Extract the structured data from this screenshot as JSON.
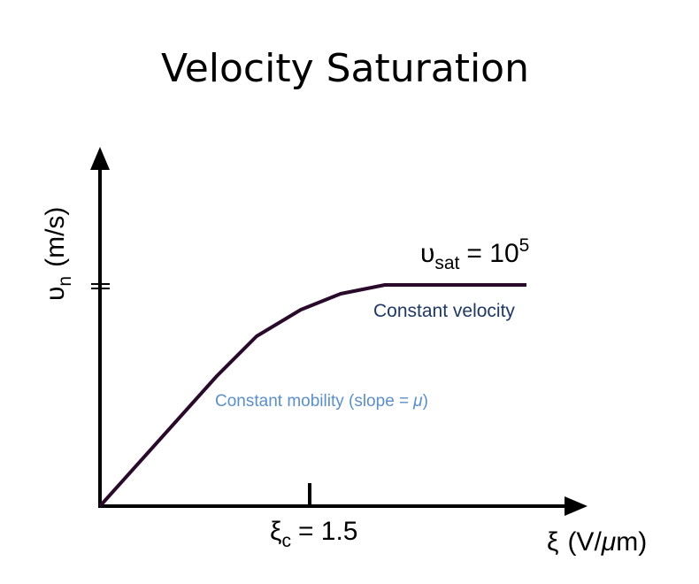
{
  "title": "Velocity Saturation",
  "y_axis": {
    "symbol": "υ",
    "subscript": "n",
    "unit": "(m/s)"
  },
  "saturation": {
    "symbol": "υ",
    "subscript": "sat",
    "relation": "= 10",
    "superscript": "5"
  },
  "regions": {
    "velocity": "Constant velocity",
    "mobility": {
      "text": "Constant mobility (slope =",
      "symbol": "μ",
      "close": ")"
    }
  },
  "critical_field": {
    "symbol": "ξ",
    "subscript": "c",
    "relation": "= 1.5"
  },
  "x_axis": {
    "symbol": "ξ",
    "unit_open": "(V/",
    "unit_symbol": "μ",
    "unit_close": "m)"
  }
}
